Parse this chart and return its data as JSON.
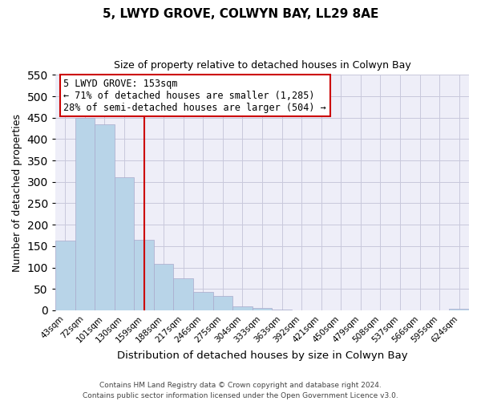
{
  "title": "5, LWYD GROVE, COLWYN BAY, LL29 8AE",
  "subtitle": "Size of property relative to detached houses in Colwyn Bay",
  "xlabel": "Distribution of detached houses by size in Colwyn Bay",
  "ylabel": "Number of detached properties",
  "bar_color": "#b8d4e8",
  "bar_edge_color": "#aaaacc",
  "categories": [
    "43sqm",
    "72sqm",
    "101sqm",
    "130sqm",
    "159sqm",
    "188sqm",
    "217sqm",
    "246sqm",
    "275sqm",
    "304sqm",
    "333sqm",
    "363sqm",
    "392sqm",
    "421sqm",
    "450sqm",
    "479sqm",
    "508sqm",
    "537sqm",
    "566sqm",
    "595sqm",
    "624sqm"
  ],
  "values": [
    162,
    450,
    435,
    310,
    165,
    108,
    75,
    43,
    33,
    10,
    5,
    2,
    0,
    0,
    0,
    0,
    0,
    0,
    0,
    0,
    3
  ],
  "vline_index": 4,
  "vline_color": "#cc0000",
  "annotation_line1": "5 LWYD GROVE: 153sqm",
  "annotation_line2": "← 71% of detached houses are smaller (1,285)",
  "annotation_line3": "28% of semi-detached houses are larger (504) →",
  "annotation_box_color": "#ffffff",
  "annotation_box_edge": "#cc0000",
  "ylim": [
    0,
    550
  ],
  "yticks": [
    0,
    50,
    100,
    150,
    200,
    250,
    300,
    350,
    400,
    450,
    500,
    550
  ],
  "footer_line1": "Contains HM Land Registry data © Crown copyright and database right 2024.",
  "footer_line2": "Contains public sector information licensed under the Open Government Licence v3.0.",
  "grid_color": "#c8c8dc",
  "background_color": "#eeeef8"
}
